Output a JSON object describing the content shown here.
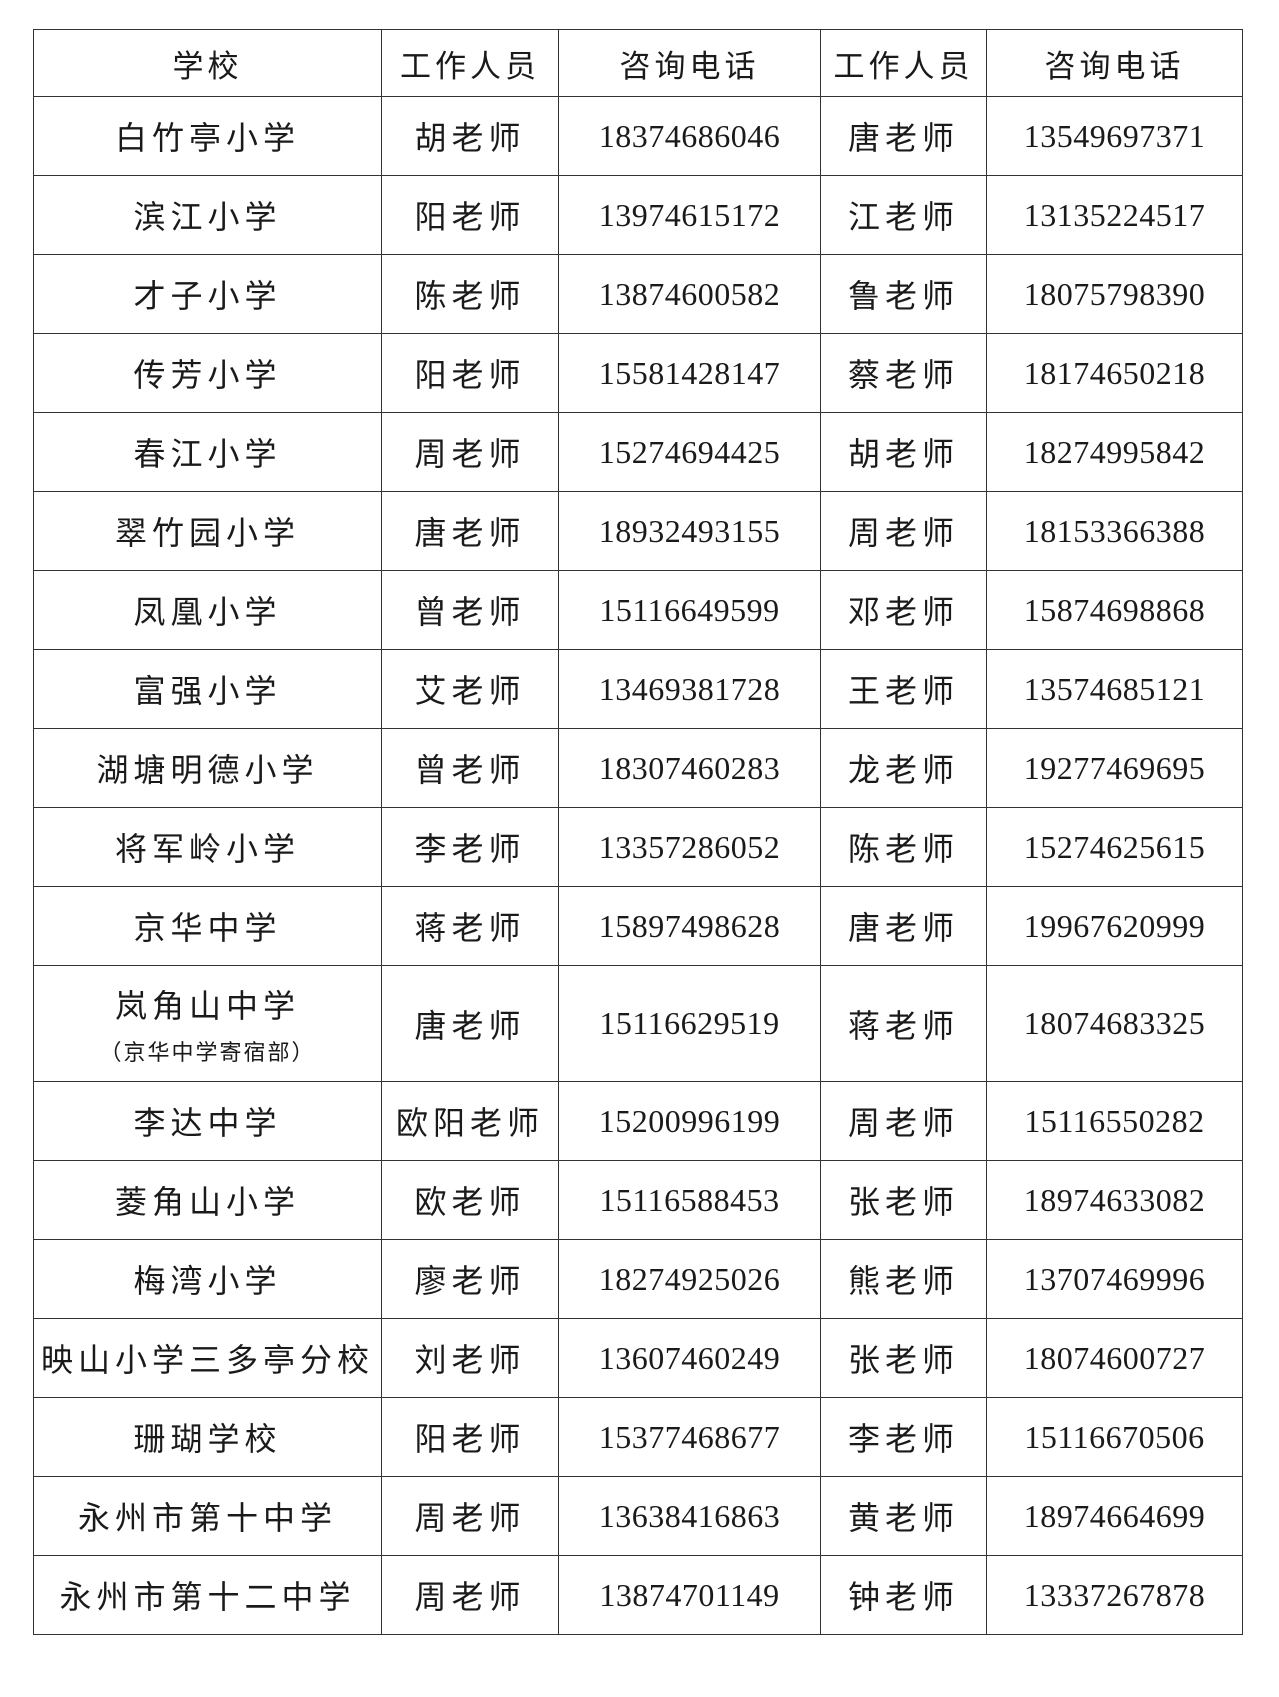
{
  "headers": [
    "学校",
    "工作人员",
    "咨询电话",
    "工作人员",
    "咨询电话"
  ],
  "rows": [
    {
      "school": "白竹亭小学",
      "staff1": "胡老师",
      "phone1": "18374686046",
      "staff2": "唐老师",
      "phone2": "13549697371"
    },
    {
      "school": "滨江小学",
      "staff1": "阳老师",
      "phone1": "13974615172",
      "staff2": "江老师",
      "phone2": "13135224517"
    },
    {
      "school": "才子小学",
      "staff1": "陈老师",
      "phone1": "13874600582",
      "staff2": "鲁老师",
      "phone2": "18075798390"
    },
    {
      "school": "传芳小学",
      "staff1": "阳老师",
      "phone1": "15581428147",
      "staff2": "蔡老师",
      "phone2": "18174650218"
    },
    {
      "school": "春江小学",
      "staff1": "周老师",
      "phone1": "15274694425",
      "staff2": "胡老师",
      "phone2": "18274995842"
    },
    {
      "school": "翠竹园小学",
      "staff1": "唐老师",
      "phone1": "18932493155",
      "staff2": "周老师",
      "phone2": "18153366388"
    },
    {
      "school": "凤凰小学",
      "staff1": "曾老师",
      "phone1": "15116649599",
      "staff2": "邓老师",
      "phone2": "15874698868"
    },
    {
      "school": "富强小学",
      "staff1": "艾老师",
      "phone1": "13469381728",
      "staff2": "王老师",
      "phone2": "13574685121"
    },
    {
      "school": "湖塘明德小学",
      "staff1": "曾老师",
      "phone1": "18307460283",
      "staff2": "龙老师",
      "phone2": "19277469695"
    },
    {
      "school": "将军岭小学",
      "staff1": "李老师",
      "phone1": "13357286052",
      "staff2": "陈老师",
      "phone2": "15274625615"
    },
    {
      "school": "京华中学",
      "staff1": "蒋老师",
      "phone1": "15897498628",
      "staff2": "唐老师",
      "phone2": "19967620999"
    },
    {
      "school": "岚角山中学",
      "note": "（京华中学寄宿部）",
      "staff1": "唐老师",
      "phone1": "15116629519",
      "staff2": "蒋老师",
      "phone2": "18074683325"
    },
    {
      "school": "李达中学",
      "staff1": "欧阳老师",
      "phone1": "15200996199",
      "staff2": "周老师",
      "phone2": "15116550282"
    },
    {
      "school": "菱角山小学",
      "staff1": "欧老师",
      "phone1": "15116588453",
      "staff2": "张老师",
      "phone2": "18974633082"
    },
    {
      "school": "梅湾小学",
      "staff1": "廖老师",
      "phone1": "18274925026",
      "staff2": "熊老师",
      "phone2": "13707469996"
    },
    {
      "school": "映山小学三多亭分校",
      "staff1": "刘老师",
      "phone1": "13607460249",
      "staff2": "张老师",
      "phone2": "18074600727"
    },
    {
      "school": "珊瑚学校",
      "staff1": "阳老师",
      "phone1": "15377468677",
      "staff2": "李老师",
      "phone2": "15116670506"
    },
    {
      "school": "永州市第十中学",
      "staff1": "周老师",
      "phone1": "13638416863",
      "staff2": "黄老师",
      "phone2": "18974664699"
    },
    {
      "school": "永州市第十二中学",
      "staff1": "周老师",
      "phone1": "13874701149",
      "staff2": "钟老师",
      "phone2": "13337267878"
    }
  ]
}
